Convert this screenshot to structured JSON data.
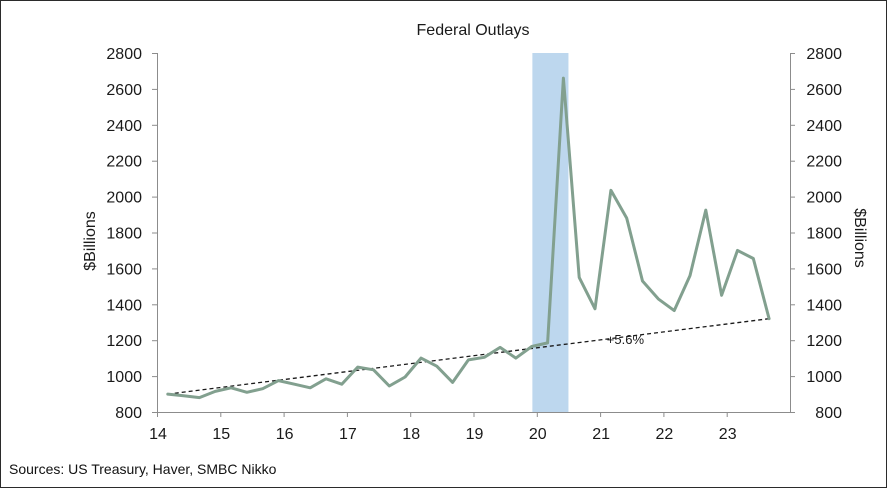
{
  "chart_data": {
    "type": "line",
    "title": "Federal Outlays",
    "ylabel_left": "$Billions",
    "ylabel_right": "$Billions",
    "ylim": [
      800,
      2800
    ],
    "y_ticks": [
      800,
      1000,
      1200,
      1400,
      1600,
      1800,
      2000,
      2200,
      2400,
      2600,
      2800
    ],
    "xlim": [
      14,
      24
    ],
    "x_ticks": [
      14,
      15,
      16,
      17,
      18,
      19,
      20,
      21,
      22,
      23
    ],
    "x_tick_labels": [
      "14",
      "15",
      "16",
      "17",
      "18",
      "19",
      "20",
      "21",
      "22",
      "23"
    ],
    "shaded_region": {
      "x_start": 19.93,
      "x_end": 20.5
    },
    "series": [
      {
        "name": "Federal Outlays",
        "color": "#82a08f",
        "x": [
          14.17,
          14.42,
          14.67,
          14.92,
          15.17,
          15.42,
          15.67,
          15.92,
          16.17,
          16.42,
          16.67,
          16.92,
          17.17,
          17.42,
          17.67,
          17.92,
          18.17,
          18.42,
          18.67,
          18.92,
          19.17,
          19.42,
          19.67,
          19.92,
          20.17,
          20.42,
          20.67,
          20.92,
          21.17,
          21.42,
          21.67,
          21.92,
          22.17,
          22.42,
          22.67,
          22.92,
          23.17,
          23.42,
          23.67
        ],
        "values": [
          900,
          890,
          880,
          915,
          935,
          910,
          930,
          975,
          955,
          935,
          985,
          955,
          1050,
          1035,
          945,
          995,
          1100,
          1055,
          965,
          1090,
          1105,
          1160,
          1100,
          1165,
          1185,
          2660,
          1550,
          1375,
          2035,
          1880,
          1530,
          1430,
          1365,
          1560,
          1925,
          1450,
          1700,
          1655,
          1320
        ]
      }
    ],
    "trendline": {
      "name": "trend",
      "x": [
        14.17,
        23.67
      ],
      "values": [
        900,
        1320
      ],
      "label": "+5.6%",
      "label_x": 21.4,
      "label_y": 1180
    }
  },
  "footer": {
    "source": "Sources: US Treasury, Haver, SMBC Nikko"
  }
}
